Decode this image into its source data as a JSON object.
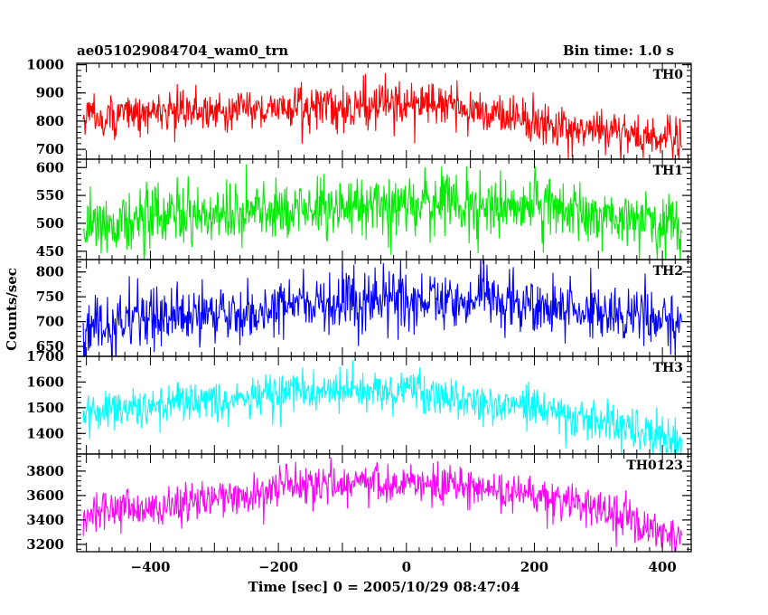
{
  "header": {
    "title": "ae051029084704_wam0_trn",
    "bin_time": "Bin time: 1.0 s"
  },
  "chart_data": {
    "type": "line",
    "title": "ae051029084704_wam0_trn",
    "xlabel": "Time [sec] 0 = 2005/10/29 08:47:04",
    "ylabel": "Counts/sec",
    "xlim": [
      -515,
      445
    ],
    "x_range": [
      -505,
      430
    ],
    "x_ticks": [
      -400,
      -200,
      0,
      200,
      400
    ],
    "grid": false,
    "panels": [
      {
        "name": "TH0",
        "color": "#ff0000",
        "ylim": [
          665,
          1005
        ],
        "y_ticks": [
          700,
          800,
          900,
          1000
        ],
        "trend": [
          [
            -505,
            815
          ],
          [
            -300,
            840
          ],
          [
            -100,
            850
          ],
          [
            0,
            865
          ],
          [
            100,
            840
          ],
          [
            200,
            800
          ],
          [
            300,
            770
          ],
          [
            430,
            720
          ]
        ],
        "spread": 38
      },
      {
        "name": "TH1",
        "color": "#00ee00",
        "ylim": [
          435,
          615
        ],
        "y_ticks": [
          450,
          500,
          550,
          600
        ],
        "trend": [
          [
            -505,
            500
          ],
          [
            -300,
            515
          ],
          [
            -100,
            530
          ],
          [
            0,
            535
          ],
          [
            200,
            530
          ],
          [
            430,
            495
          ]
        ],
        "spread": 28
      },
      {
        "name": "TH2",
        "color": "#0000ff",
        "ylim": [
          630,
          825
        ],
        "y_ticks": [
          650,
          700,
          750,
          800
        ],
        "trend": [
          [
            -505,
            690
          ],
          [
            -300,
            715
          ],
          [
            -100,
            740
          ],
          [
            0,
            745
          ],
          [
            200,
            740
          ],
          [
            430,
            700
          ]
        ],
        "spread": 30
      },
      {
        "name": "TH3",
        "color": "#00ffff",
        "ylim": [
          1320,
          1700
        ],
        "y_ticks": [
          1400,
          1500,
          1600,
          1700
        ],
        "trend": [
          [
            -505,
            1490
          ],
          [
            -300,
            1525
          ],
          [
            -100,
            1570
          ],
          [
            0,
            1565
          ],
          [
            100,
            1530
          ],
          [
            200,
            1500
          ],
          [
            300,
            1450
          ],
          [
            430,
            1370
          ]
        ],
        "spread": 40
      },
      {
        "name": "TH0123",
        "color": "#ff00ff",
        "ylim": [
          3140,
          3940
        ],
        "y_ticks": [
          3200,
          3400,
          3600,
          3800
        ],
        "trend": [
          [
            -505,
            3450
          ],
          [
            -300,
            3560
          ],
          [
            -150,
            3700
          ],
          [
            0,
            3720
          ],
          [
            100,
            3680
          ],
          [
            200,
            3600
          ],
          [
            300,
            3450
          ],
          [
            430,
            3250
          ]
        ],
        "spread": 85
      }
    ]
  }
}
